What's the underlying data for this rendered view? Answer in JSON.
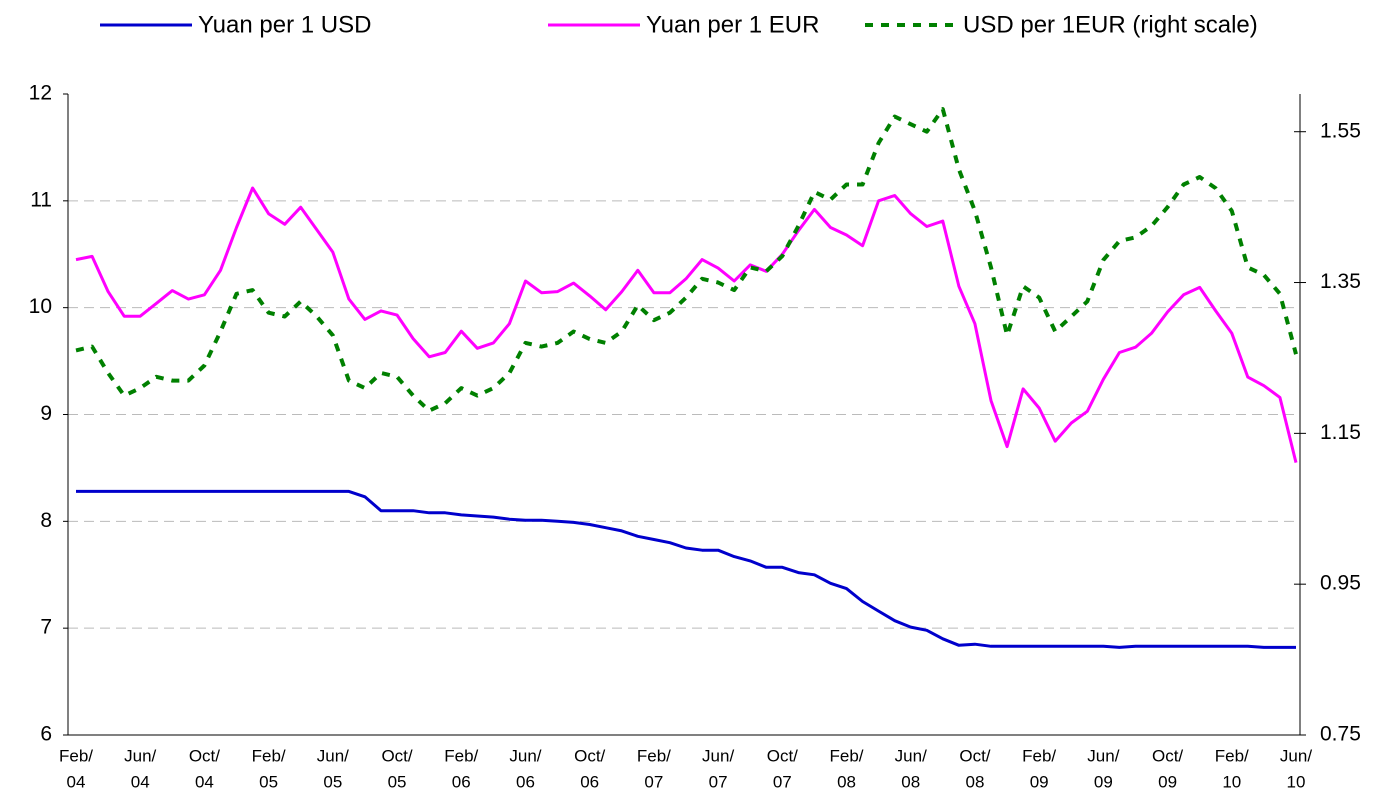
{
  "chart_data": {
    "type": "line",
    "legend": "top",
    "grid": true,
    "categories": [
      [
        "Feb/",
        "04"
      ],
      null,
      null,
      null,
      [
        "Jun/",
        "04"
      ],
      null,
      null,
      null,
      [
        "Oct/",
        "04"
      ],
      null,
      null,
      null,
      [
        "Feb/",
        "05"
      ],
      null,
      null,
      null,
      [
        "Jun/",
        "05"
      ],
      null,
      null,
      null,
      [
        "Oct/",
        "05"
      ],
      null,
      null,
      null,
      [
        "Feb/",
        "06"
      ],
      null,
      null,
      null,
      [
        "Jun/",
        "06"
      ],
      null,
      null,
      null,
      [
        "Oct/",
        "06"
      ],
      null,
      null,
      null,
      [
        "Feb/",
        "07"
      ],
      null,
      null,
      null,
      [
        "Jun/",
        "07"
      ],
      null,
      null,
      null,
      [
        "Oct/",
        "07"
      ],
      null,
      null,
      null,
      [
        "Feb/",
        "08"
      ],
      null,
      null,
      null,
      [
        "Jun/",
        "08"
      ],
      null,
      null,
      null,
      [
        "Oct/",
        "08"
      ],
      null,
      null,
      null,
      [
        "Feb/",
        "09"
      ],
      null,
      null,
      null,
      [
        "Jun/",
        "09"
      ],
      null,
      null,
      null,
      [
        "Oct/",
        "09"
      ],
      null,
      null,
      null,
      [
        "Feb/",
        "10"
      ],
      null,
      null,
      null,
      [
        "Jun/",
        "10"
      ]
    ],
    "ylim": [
      6,
      12
    ],
    "yticks": [
      6,
      7,
      8,
      9,
      10,
      11,
      12
    ],
    "y2lim": [
      0.75,
      1.6
    ],
    "y2ticks": [
      0.75,
      0.95,
      1.15,
      1.35,
      1.55
    ],
    "series": [
      {
        "name": "Yuan per 1 USD",
        "color": "#0000cc",
        "dash": false,
        "values": [
          8.28,
          8.28,
          8.28,
          8.28,
          8.28,
          8.28,
          8.28,
          8.28,
          8.28,
          8.28,
          8.28,
          8.28,
          8.28,
          8.28,
          8.28,
          8.28,
          8.28,
          8.28,
          8.23,
          8.1,
          8.1,
          8.1,
          8.08,
          8.08,
          8.06,
          8.05,
          8.04,
          8.02,
          8.01,
          8.01,
          8.0,
          7.99,
          7.97,
          7.94,
          7.91,
          7.86,
          7.83,
          7.8,
          7.75,
          7.73,
          7.73,
          7.67,
          7.63,
          7.57,
          7.57,
          7.52,
          7.5,
          7.42,
          7.37,
          7.25,
          7.16,
          7.07,
          7.01,
          6.98,
          6.9,
          6.84,
          6.85,
          6.83,
          6.83,
          6.83,
          6.83,
          6.83,
          6.83,
          6.83,
          6.83,
          6.82,
          6.83,
          6.83,
          6.83,
          6.83,
          6.83,
          6.83,
          6.83,
          6.83,
          6.82,
          6.82,
          6.82
        ]
      },
      {
        "name": "Yuan per 1 EUR",
        "color": "#ff00ff",
        "dash": false,
        "values": [
          10.45,
          10.48,
          10.15,
          9.92,
          9.92,
          10.04,
          10.16,
          10.08,
          10.12,
          10.35,
          10.75,
          11.12,
          10.88,
          10.78,
          10.94,
          10.73,
          10.52,
          10.08,
          9.89,
          9.97,
          9.93,
          9.71,
          9.54,
          9.58,
          9.78,
          9.62,
          9.67,
          9.85,
          10.25,
          10.14,
          10.15,
          10.23,
          10.11,
          9.98,
          10.15,
          10.35,
          10.14,
          10.14,
          10.27,
          10.45,
          10.37,
          10.25,
          10.4,
          10.34,
          10.5,
          10.72,
          10.92,
          10.75,
          10.68,
          10.58,
          11.0,
          11.05,
          10.88,
          10.76,
          10.81,
          10.2,
          9.85,
          9.13,
          8.7,
          9.24,
          9.06,
          8.75,
          8.92,
          9.03,
          9.33,
          9.58,
          9.63,
          9.76,
          9.96,
          10.12,
          10.19,
          9.97,
          9.76,
          9.35,
          9.27,
          9.16,
          8.55
        ]
      },
      {
        "name": "USD per 1EUR (right scale)",
        "color": "#008000",
        "dash": true,
        "axis": "y2",
        "values": [
          1.26,
          1.265,
          1.23,
          1.2,
          1.21,
          1.225,
          1.22,
          1.22,
          1.24,
          1.285,
          1.335,
          1.34,
          1.31,
          1.305,
          1.325,
          1.305,
          1.28,
          1.22,
          1.21,
          1.23,
          1.225,
          1.2,
          1.18,
          1.19,
          1.21,
          1.2,
          1.21,
          1.23,
          1.27,
          1.265,
          1.27,
          1.285,
          1.275,
          1.27,
          1.285,
          1.32,
          1.3,
          1.31,
          1.33,
          1.355,
          1.35,
          1.34,
          1.37,
          1.365,
          1.385,
          1.425,
          1.47,
          1.46,
          1.48,
          1.48,
          1.535,
          1.57,
          1.56,
          1.55,
          1.58,
          1.5,
          1.445,
          1.37,
          1.28,
          1.345,
          1.33,
          1.285,
          1.305,
          1.325,
          1.38,
          1.405,
          1.41,
          1.425,
          1.45,
          1.48,
          1.49,
          1.475,
          1.445,
          1.37,
          1.36,
          1.335,
          1.255
        ]
      }
    ]
  }
}
